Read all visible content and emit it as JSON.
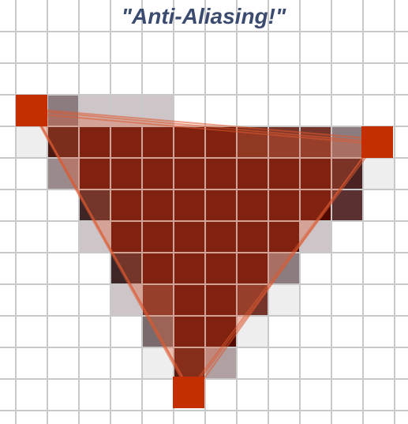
{
  "title": "\"Anti-Aliasing!\""
}
